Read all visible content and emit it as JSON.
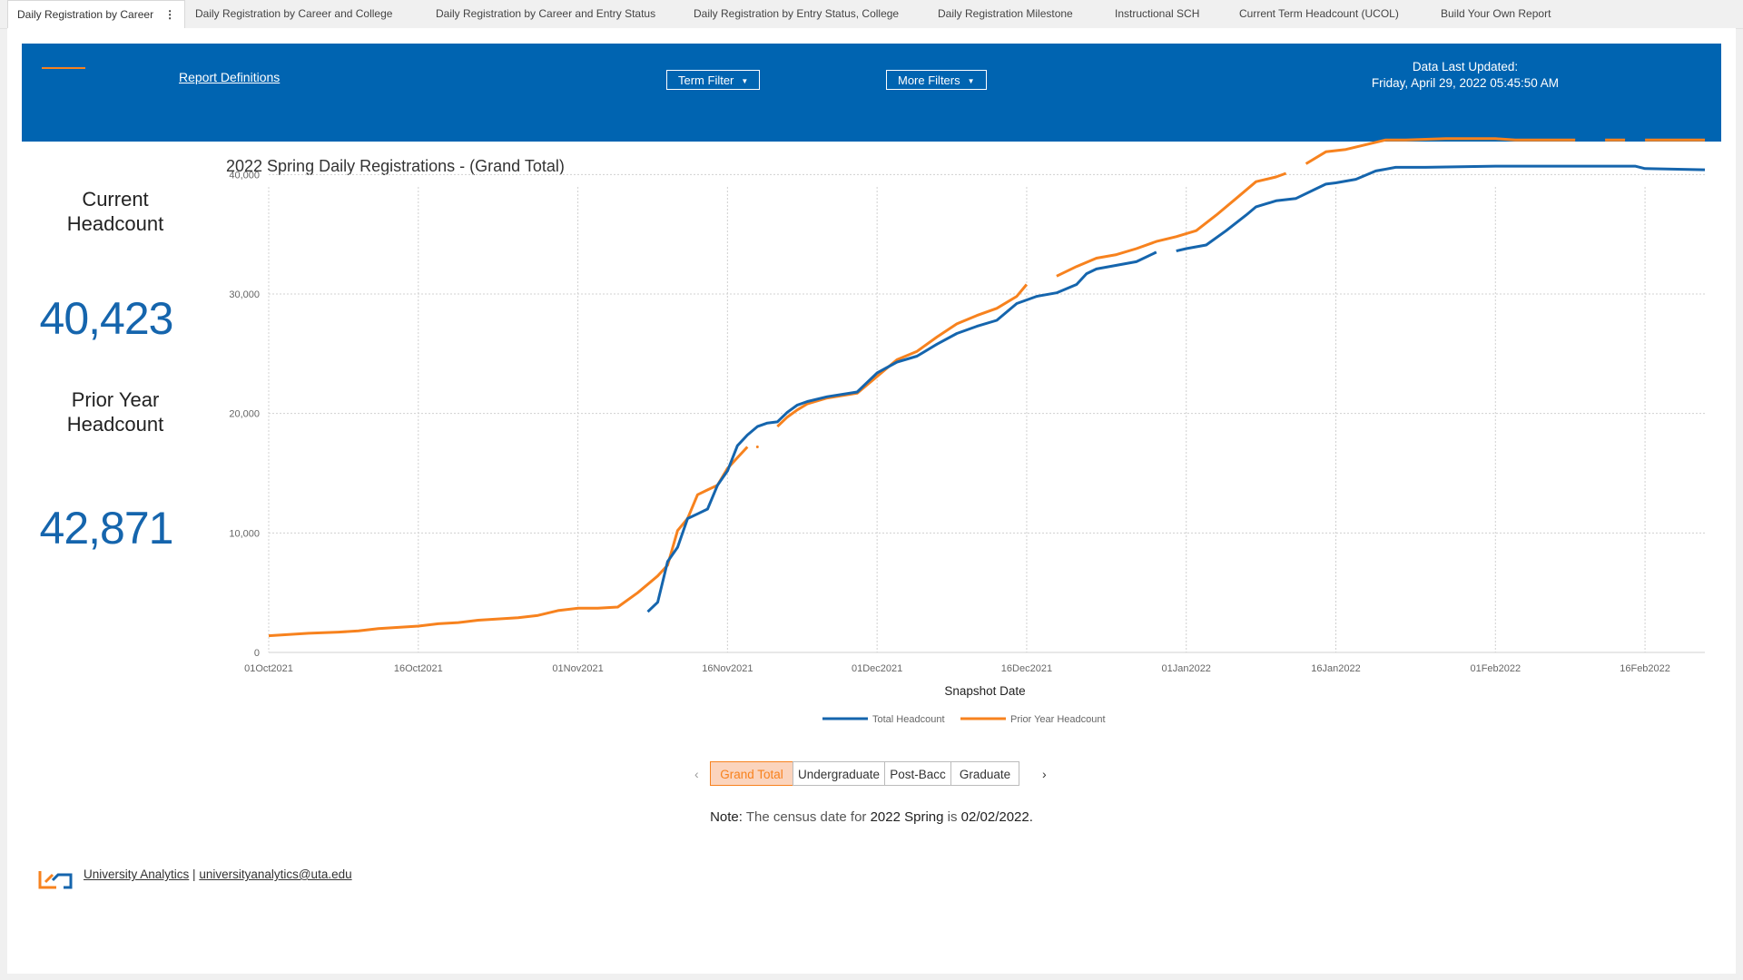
{
  "tabs": [
    {
      "label": "Daily Registration by Career",
      "active": true
    },
    {
      "label": "Daily Registration by Career and College"
    },
    {
      "label": "Daily Registration by Career and Entry Status"
    },
    {
      "label": "Daily Registration by Entry Status, College"
    },
    {
      "label": "Daily Registration Milestone"
    },
    {
      "label": "Instructional SCH"
    },
    {
      "label": "Current Term Headcount (UCOL)"
    },
    {
      "label": "Build Your Own Report"
    }
  ],
  "banner": {
    "report_definitions": "Report Definitions",
    "term_filter": "Term Filter",
    "more_filters": "More Filters",
    "updated_label": "Data Last Updated:",
    "updated_value": "Friday, April 29, 2022 05:45:50 AM",
    "color": "#0064b1"
  },
  "kpis": {
    "current_label_1": "Current",
    "current_label_2": "Headcount",
    "current_value": "40,423",
    "prior_label_1": "Prior Year",
    "prior_label_2": "Headcount",
    "prior_value": "42,871"
  },
  "chart_data": {
    "type": "line",
    "title": "2022 Spring Daily Registrations - (Grand Total)",
    "xlabel": "Snapshot Date",
    "ylabel": "",
    "ylim": [
      0,
      42000
    ],
    "yticks": [
      "0",
      "10,000",
      "20,000",
      "30,000",
      "40,000"
    ],
    "xticks": [
      "01Oct2021",
      "16Oct2021",
      "01Nov2021",
      "16Nov2021",
      "01Dec2021",
      "16Dec2021",
      "01Jan2022",
      "16Jan2022",
      "01Feb2022",
      "16Feb2022"
    ],
    "x_start": "2021-10-01",
    "x_end": "2022-02-22",
    "grid": true,
    "legend_position": "bottom",
    "series": [
      {
        "name": "Total Headcount",
        "color": "#1565ad",
        "segments": [
          [
            [
              "2021-11-08",
              3400
            ],
            [
              "2021-11-09",
              4200
            ],
            [
              "2021-11-10",
              7600
            ],
            [
              "2021-11-11",
              8800
            ],
            [
              "2021-11-12",
              11200
            ],
            [
              "2021-11-13",
              11600
            ],
            [
              "2021-11-14",
              12000
            ],
            [
              "2021-11-15",
              14000
            ],
            [
              "2021-11-16",
              15200
            ],
            [
              "2021-11-17",
              17300
            ],
            [
              "2021-11-18",
              18200
            ],
            [
              "2021-11-19",
              18900
            ],
            [
              "2021-11-20",
              19200
            ],
            [
              "2021-11-21",
              19300
            ],
            [
              "2021-11-22",
              20100
            ],
            [
              "2021-11-23",
              20700
            ],
            [
              "2021-11-24",
              21000
            ],
            [
              "2021-11-26",
              21400
            ],
            [
              "2021-11-29",
              21800
            ],
            [
              "2021-12-01",
              23400
            ],
            [
              "2021-12-03",
              24300
            ],
            [
              "2021-12-05",
              24800
            ],
            [
              "2021-12-07",
              25800
            ],
            [
              "2021-12-09",
              26700
            ],
            [
              "2021-12-11",
              27300
            ],
            [
              "2021-12-13",
              27800
            ],
            [
              "2021-12-15",
              29200
            ],
            [
              "2021-12-17",
              29800
            ],
            [
              "2021-12-19",
              30100
            ],
            [
              "2021-12-21",
              30800
            ],
            [
              "2021-12-22",
              31700
            ],
            [
              "2021-12-23",
              32100
            ],
            [
              "2021-12-25",
              32400
            ],
            [
              "2021-12-27",
              32700
            ],
            [
              "2021-12-29",
              33500
            ]
          ],
          [
            [
              "2021-12-31",
              33600
            ],
            [
              "2022-01-01",
              33800
            ],
            [
              "2022-01-03",
              34100
            ],
            [
              "2022-01-05",
              35300
            ],
            [
              "2022-01-07",
              36600
            ],
            [
              "2022-01-08",
              37300
            ],
            [
              "2022-01-10",
              37800
            ],
            [
              "2022-01-12",
              38000
            ],
            [
              "2022-01-14",
              38800
            ],
            [
              "2022-01-15",
              39200
            ],
            [
              "2022-01-16",
              39300
            ],
            [
              "2022-01-18",
              39600
            ],
            [
              "2022-01-20",
              40300
            ],
            [
              "2022-01-22",
              40600
            ],
            [
              "2022-01-25",
              40600
            ],
            [
              "2022-02-01",
              40700
            ],
            [
              "2022-02-09",
              40700
            ],
            [
              "2022-02-15",
              40700
            ],
            [
              "2022-02-16",
              40500
            ],
            [
              "2022-02-22",
              40400
            ]
          ]
        ]
      },
      {
        "name": "Prior Year Headcount",
        "color": "#f7821e",
        "segments": [
          [
            [
              "2021-10-01",
              1400
            ],
            [
              "2021-10-03",
              1500
            ],
            [
              "2021-10-05",
              1600
            ],
            [
              "2021-10-08",
              1700
            ],
            [
              "2021-10-10",
              1800
            ],
            [
              "2021-10-12",
              2000
            ],
            [
              "2021-10-14",
              2100
            ],
            [
              "2021-10-16",
              2200
            ],
            [
              "2021-10-18",
              2400
            ],
            [
              "2021-10-20",
              2500
            ],
            [
              "2021-10-22",
              2700
            ],
            [
              "2021-10-24",
              2800
            ],
            [
              "2021-10-26",
              2900
            ],
            [
              "2021-10-28",
              3100
            ],
            [
              "2021-10-30",
              3500
            ],
            [
              "2021-11-01",
              3700
            ],
            [
              "2021-11-03",
              3700
            ],
            [
              "2021-11-05",
              3800
            ],
            [
              "2021-11-07",
              5000
            ],
            [
              "2021-11-09",
              6400
            ],
            [
              "2021-11-10",
              7300
            ],
            [
              "2021-11-11",
              10200
            ],
            [
              "2021-11-12",
              11200
            ],
            [
              "2021-11-13",
              13200
            ],
            [
              "2021-11-14",
              13600
            ],
            [
              "2021-11-15",
              14000
            ],
            [
              "2021-11-16",
              15400
            ],
            [
              "2021-11-17",
              16300
            ],
            [
              "2021-11-18",
              17200
            ]
          ],
          [
            [
              "2021-11-21",
              18900
            ],
            [
              "2021-11-22",
              19700
            ],
            [
              "2021-11-23",
              20300
            ],
            [
              "2021-11-24",
              20800
            ],
            [
              "2021-11-26",
              21300
            ],
            [
              "2021-11-29",
              21700
            ],
            [
              "2021-12-01",
              23100
            ],
            [
              "2021-12-03",
              24500
            ],
            [
              "2021-12-05",
              25200
            ],
            [
              "2021-12-07",
              26400
            ],
            [
              "2021-12-09",
              27500
            ],
            [
              "2021-12-11",
              28200
            ],
            [
              "2021-12-13",
              28800
            ],
            [
              "2021-12-15",
              29800
            ],
            [
              "2021-12-16",
              30800
            ]
          ],
          [
            [
              "2021-12-19",
              31500
            ],
            [
              "2021-12-21",
              32300
            ],
            [
              "2021-12-23",
              33000
            ],
            [
              "2021-12-25",
              33300
            ],
            [
              "2021-12-27",
              33800
            ],
            [
              "2021-12-29",
              34400
            ],
            [
              "2021-12-31",
              34800
            ],
            [
              "2022-01-02",
              35300
            ],
            [
              "2022-01-04",
              36600
            ],
            [
              "2022-01-06",
              38000
            ],
            [
              "2022-01-08",
              39400
            ],
            [
              "2022-01-10",
              39800
            ],
            [
              "2022-01-11",
              40100
            ]
          ],
          [
            [
              "2022-01-13",
              40900
            ],
            [
              "2022-01-15",
              41900
            ],
            [
              "2022-01-17",
              42100
            ],
            [
              "2022-01-19",
              42500
            ],
            [
              "2022-01-21",
              42900
            ],
            [
              "2022-01-23",
              42900
            ],
            [
              "2022-01-27",
              43000
            ],
            [
              "2022-02-01",
              43000
            ],
            [
              "2022-02-03",
              42900
            ],
            [
              "2022-02-09",
              42900
            ]
          ],
          [
            [
              "2022-02-12",
              42900
            ],
            [
              "2022-02-14",
              42900
            ]
          ],
          [
            [
              "2022-02-16",
              42900
            ],
            [
              "2022-02-22",
              42900
            ]
          ]
        ]
      }
    ]
  },
  "categories": {
    "items": [
      "Grand Total",
      "Undergraduate",
      "Post-Bacc",
      "Graduate"
    ],
    "active": "Grand Total",
    "prev_arrow": "‹",
    "next_arrow": "›"
  },
  "note": {
    "label": "Note:",
    "text1": " The census date for ",
    "term": "2022 Spring",
    "text2": " is ",
    "date": "02/02/2022."
  },
  "footer": {
    "link1": "University Analytics",
    "separator": " | ",
    "link2": "universityanalytics@uta.edu",
    "logo_color": "#f7821e",
    "logo_color2": "#1565ad"
  }
}
